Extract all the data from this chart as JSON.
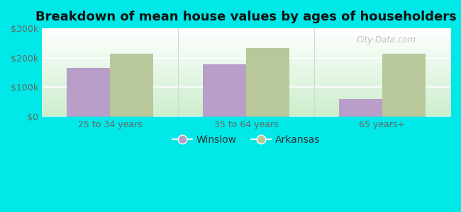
{
  "title": "Breakdown of mean house values by ages of householders",
  "categories": [
    "25 to 34 years",
    "35 to 64 years",
    "65 years+"
  ],
  "winslow_values": [
    165000,
    177000,
    60000
  ],
  "arkansas_values": [
    213000,
    232000,
    213000
  ],
  "winslow_color": "#b89ec8",
  "arkansas_color": "#b8c89a",
  "background_color": "#00e8e8",
  "ylim": [
    0,
    300000
  ],
  "yticks": [
    0,
    100000,
    200000,
    300000
  ],
  "ytick_labels": [
    "$0",
    "$100k",
    "$200k",
    "$300k"
  ],
  "bar_width": 0.32,
  "legend_winslow": "Winslow",
  "legend_arkansas": "Arkansas",
  "title_fontsize": 13,
  "tick_fontsize": 9,
  "legend_fontsize": 10
}
